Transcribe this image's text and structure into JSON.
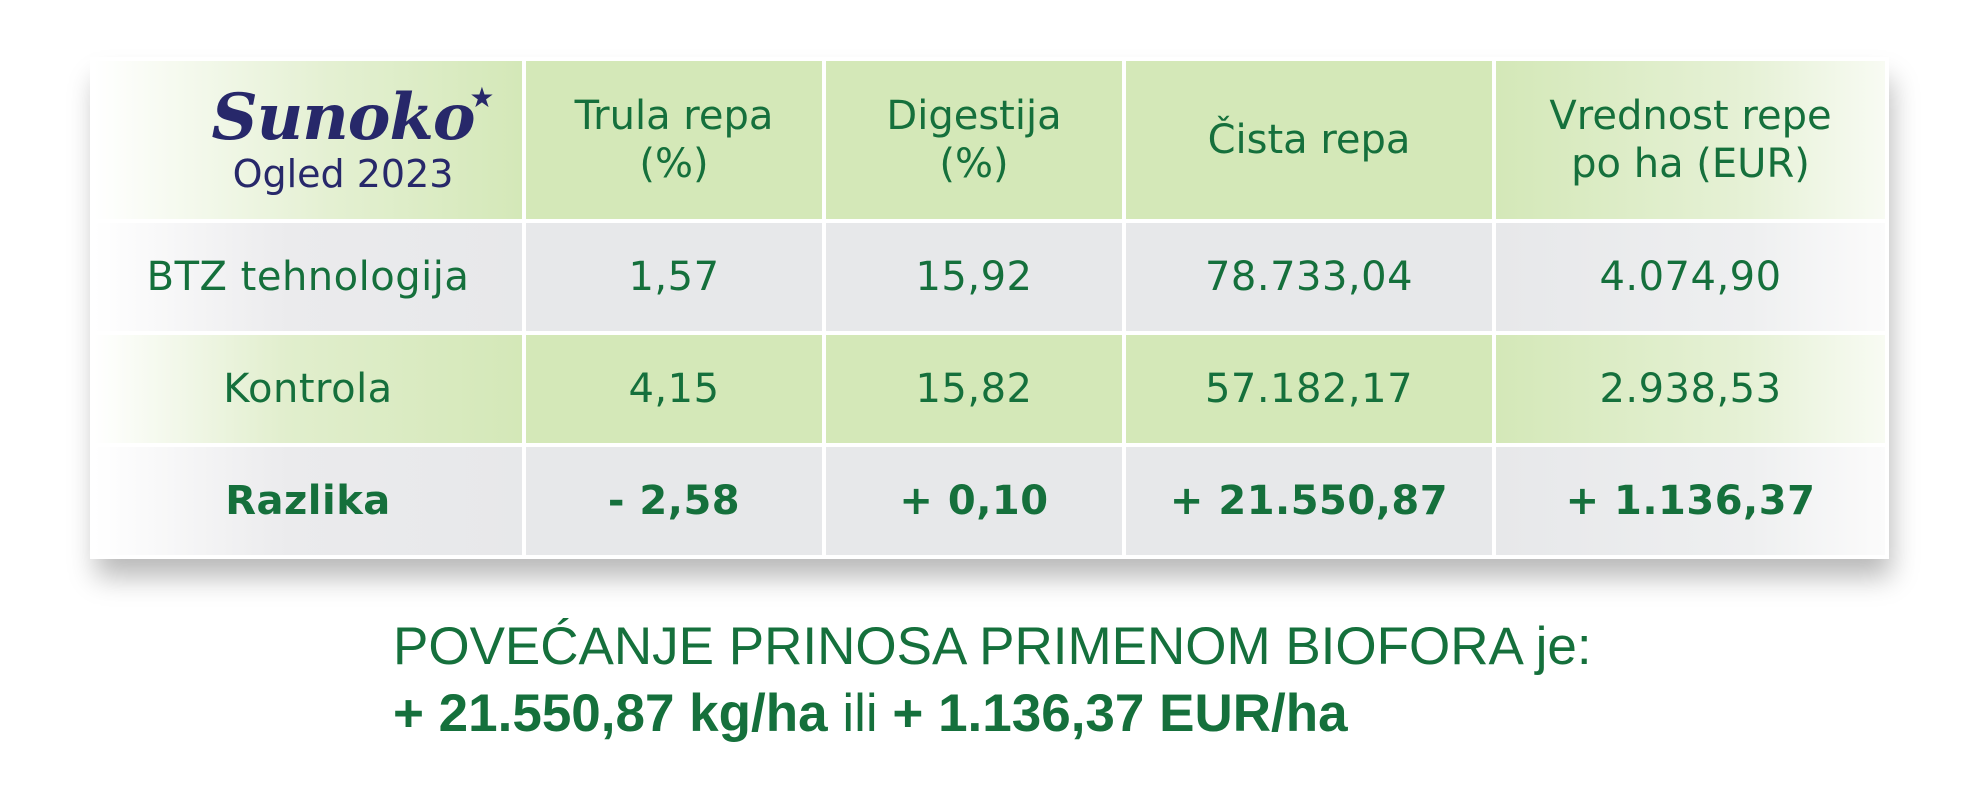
{
  "logo": {
    "brand": "Sunoko",
    "star": "★",
    "subtitle": "Ogled 2023"
  },
  "table": {
    "headers": [
      {
        "line1": "Trula repa",
        "line2": "(%)"
      },
      {
        "line1": "Digestija",
        "line2": "(%)"
      },
      {
        "line1": "Čista repa",
        "line2": ""
      },
      {
        "line1": "Vrednost repe",
        "line2": "po ha (EUR)"
      }
    ],
    "rows": [
      {
        "label": "BTZ tehnologija",
        "values": [
          "1,57",
          "15,92",
          "78.733,04",
          "4.074,90"
        ]
      },
      {
        "label": "Kontrola",
        "values": [
          "4,15",
          "15,82",
          "57.182,17",
          "2.938,53"
        ]
      },
      {
        "label": "Razlika",
        "values": [
          "- 2,58",
          "+ 0,10",
          "+ 21.550,87",
          "+ 1.136,37"
        ]
      }
    ]
  },
  "summary": {
    "line1": "POVEĆANJE PRINOSA PRIMENOM BIOFORA je:",
    "yield": "+ 21.550,87 kg/ha",
    "connector": " ili ",
    "value": "+ 1.136,37 EUR/ha"
  },
  "colors": {
    "text_green": "#15703c",
    "logo_navy": "#27286a",
    "cell_green": "#d4e8b8",
    "cell_grey": "#e7e8ea"
  }
}
